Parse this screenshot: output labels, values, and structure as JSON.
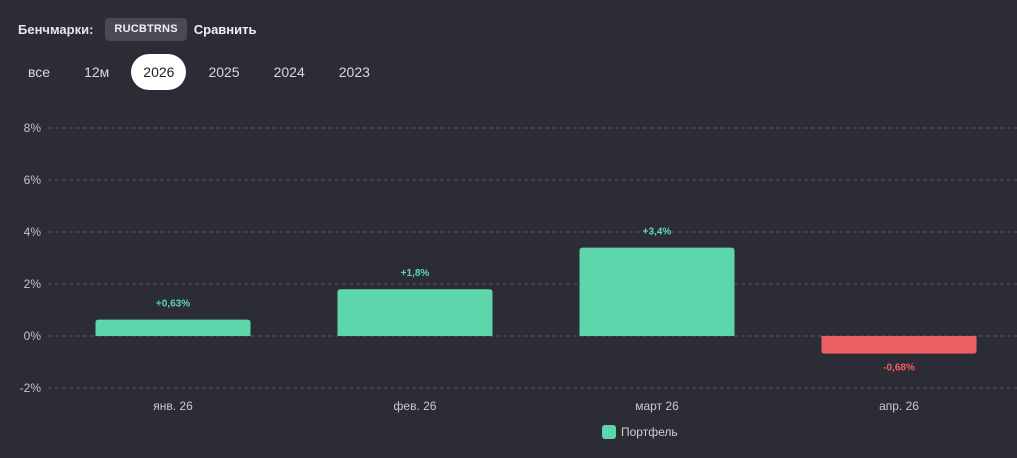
{
  "benchmarks": {
    "label": "Бенчмарки:",
    "selected": "RUCBTRNS",
    "compare_label": "Сравнить"
  },
  "period_tabs": [
    {
      "label": "все",
      "active": false
    },
    {
      "label": "12м",
      "active": false
    },
    {
      "label": "2026",
      "active": true
    },
    {
      "label": "2025",
      "active": false
    },
    {
      "label": "2024",
      "active": false
    },
    {
      "label": "2023",
      "active": false
    }
  ],
  "colors": {
    "positive": "#5dd6ac",
    "negative": "#ec6061",
    "grid": "#5a5a66",
    "background": "#2c2c36"
  },
  "chart_data": {
    "type": "bar",
    "categories": [
      "янв. 26",
      "фев. 26",
      "март 26",
      "апр. 26"
    ],
    "series": [
      {
        "name": "Портфель",
        "values": [
          0.63,
          1.8,
          3.4,
          -0.68
        ]
      }
    ],
    "data_labels": [
      "+0,63%",
      "+1,8%",
      "+3,4%",
      "-0,68%"
    ],
    "y_ticks": [
      {
        "value": 8,
        "label": "8%"
      },
      {
        "value": 6,
        "label": "6%"
      },
      {
        "value": 4,
        "label": "4%"
      },
      {
        "value": 2,
        "label": "2%"
      },
      {
        "value": 0,
        "label": "0%"
      },
      {
        "value": -2,
        "label": "-2%"
      }
    ],
    "ylim": [
      -2,
      8
    ],
    "grid": true,
    "legend_position": "bottom-center"
  }
}
